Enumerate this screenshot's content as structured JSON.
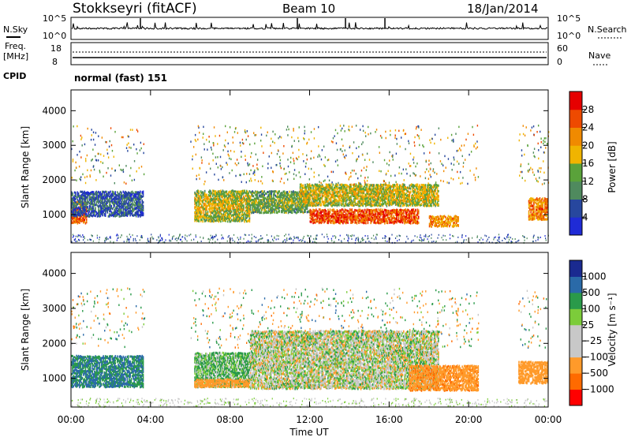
{
  "header": {
    "station": "Stokkseyri (fitACF)",
    "beam": "Beam 10",
    "date": "18/Jan/2014"
  },
  "strips": {
    "noise": {
      "left_label": "N.Sky",
      "right_label": "N.Search",
      "left_top": "10^5",
      "left_bottom": "10^0",
      "right_top": "10^5",
      "right_bottom": "10^0"
    },
    "freq": {
      "left_label": "Freq.",
      "left_unit": "[MHz]",
      "left_top": "18",
      "left_bottom": "8",
      "right_label": "Nave",
      "right_top": "60",
      "right_bottom": "0"
    },
    "cpid": {
      "label": "CPID",
      "value": "normal (fast) 151"
    }
  },
  "colors": {
    "power": [
      "#1f2bd6",
      "#27479e",
      "#4f8a5e",
      "#5aa23a",
      "#f0b400",
      "#f08a00",
      "#ee4a00",
      "#e60000"
    ],
    "velocity": [
      "#ff0000",
      "#ff6a00",
      "#ff9a2a",
      "#ffc060",
      "#c8c8c8",
      "#c8c8c8",
      "#7ccc3a",
      "#3aaa2a",
      "#2a8a70",
      "#2a5aa0",
      "#1a2a90"
    ],
    "ground_scatter": "#c8c8c0"
  },
  "chart_data": [
    {
      "type": "heatmap",
      "panel": "power",
      "ylabel": "Slant Range [km]",
      "xlabel": "Time UT",
      "xlim": [
        "00:00",
        "24:00"
      ],
      "ylim": [
        180,
        4600
      ],
      "x_ticks": [
        "00:00",
        "04:00",
        "08:00",
        "12:00",
        "16:00",
        "20:00",
        "00:00"
      ],
      "y_ticks": [
        "1000",
        "2000",
        "3000",
        "4000"
      ],
      "colorbar": {
        "label": "Power [dB]",
        "range": [
          0,
          32
        ],
        "ticks": [
          "4",
          "8",
          "12",
          "16",
          "20",
          "24",
          "28"
        ]
      },
      "regions": [
        {
          "t": [
            0.0,
            0.8
          ],
          "r": [
            800,
            1400
          ],
          "dB": 26
        },
        {
          "t": [
            0.0,
            3.6
          ],
          "r": [
            1000,
            1700
          ],
          "dB": 8
        },
        {
          "t": [
            6.2,
            9.0
          ],
          "r": [
            850,
            1750
          ],
          "dB": 18
        },
        {
          "t": [
            9.0,
            12.0
          ],
          "r": [
            1100,
            1700
          ],
          "dB": 14
        },
        {
          "t": [
            11.5,
            18.5
          ],
          "r": [
            1300,
            1900
          ],
          "dB": 18
        },
        {
          "t": [
            12.0,
            17.5
          ],
          "r": [
            800,
            1200
          ],
          "dB": 27
        },
        {
          "t": [
            18.0,
            19.5
          ],
          "r": [
            700,
            1000
          ],
          "dB": 22
        },
        {
          "t": [
            23.0,
            24.0
          ],
          "r": [
            900,
            1500
          ],
          "dB": 24
        }
      ]
    },
    {
      "type": "heatmap",
      "panel": "velocity",
      "ylabel": "Slant Range [km]",
      "xlabel": "Time UT",
      "xlim": [
        "00:00",
        "24:00"
      ],
      "ylim": [
        180,
        4600
      ],
      "x_ticks": [
        "00:00",
        "04:00",
        "08:00",
        "12:00",
        "16:00",
        "20:00",
        "00:00"
      ],
      "y_ticks": [
        "1000",
        "2000",
        "3000",
        "4000"
      ],
      "colorbar": {
        "label": "Velocity [m s⁻¹]",
        "range": [
          -1300,
          1300
        ],
        "ticks": [
          "1000",
          "500",
          "100",
          "25",
          "−25",
          "−100",
          "−500",
          "−1000"
        ]
      },
      "regions": [
        {
          "t": [
            0.0,
            3.6
          ],
          "r": [
            800,
            1700
          ],
          "v": 500
        },
        {
          "t": [
            6.2,
            9.0
          ],
          "r": [
            800,
            1750
          ],
          "v": 100
        },
        {
          "t": [
            6.2,
            9.0
          ],
          "r": [
            800,
            1000
          ],
          "v": -300
        },
        {
          "t": [
            9.0,
            18.5
          ],
          "r": [
            750,
            2400
          ],
          "v": 0
        },
        {
          "t": [
            17.0,
            20.5
          ],
          "r": [
            700,
            1400
          ],
          "v": -400
        },
        {
          "t": [
            22.5,
            24.0
          ],
          "r": [
            900,
            1500
          ],
          "v": -300
        }
      ]
    }
  ]
}
